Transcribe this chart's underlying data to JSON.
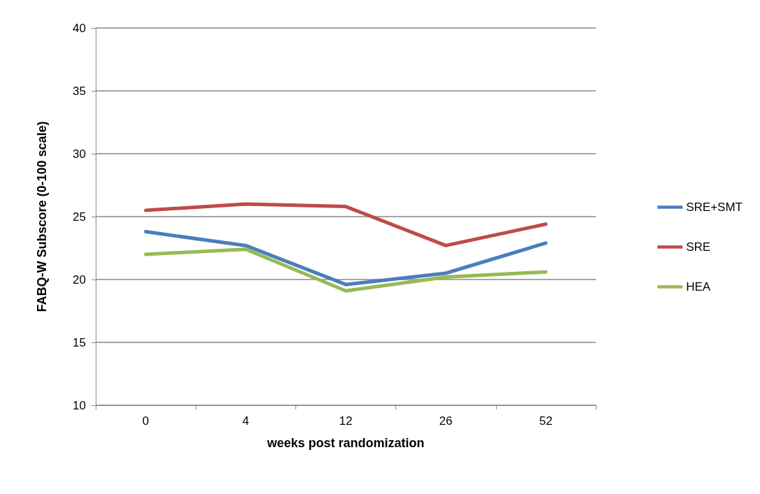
{
  "chart_data": {
    "type": "line",
    "xlabel": "weeks post randomization",
    "ylabel": "FABQ-W Subscore (0-100 scale)",
    "categories": [
      "0",
      "4",
      "12",
      "26",
      "52"
    ],
    "series": [
      {
        "name": "SRE+SMT",
        "color": "#4a7ebb",
        "values": [
          23.8,
          22.7,
          19.6,
          20.5,
          22.9
        ]
      },
      {
        "name": "SRE",
        "color": "#be4b48",
        "values": [
          25.5,
          26.0,
          25.8,
          22.7,
          24.4
        ]
      },
      {
        "name": "HEA",
        "color": "#98b954",
        "values": [
          22.0,
          22.4,
          19.1,
          20.2,
          20.6
        ]
      }
    ],
    "ylim": [
      10,
      40
    ],
    "yticks": [
      10,
      15,
      20,
      25,
      30,
      35,
      40
    ],
    "grid": "y",
    "legend": "right",
    "marker": "none",
    "line_style": "solid"
  }
}
